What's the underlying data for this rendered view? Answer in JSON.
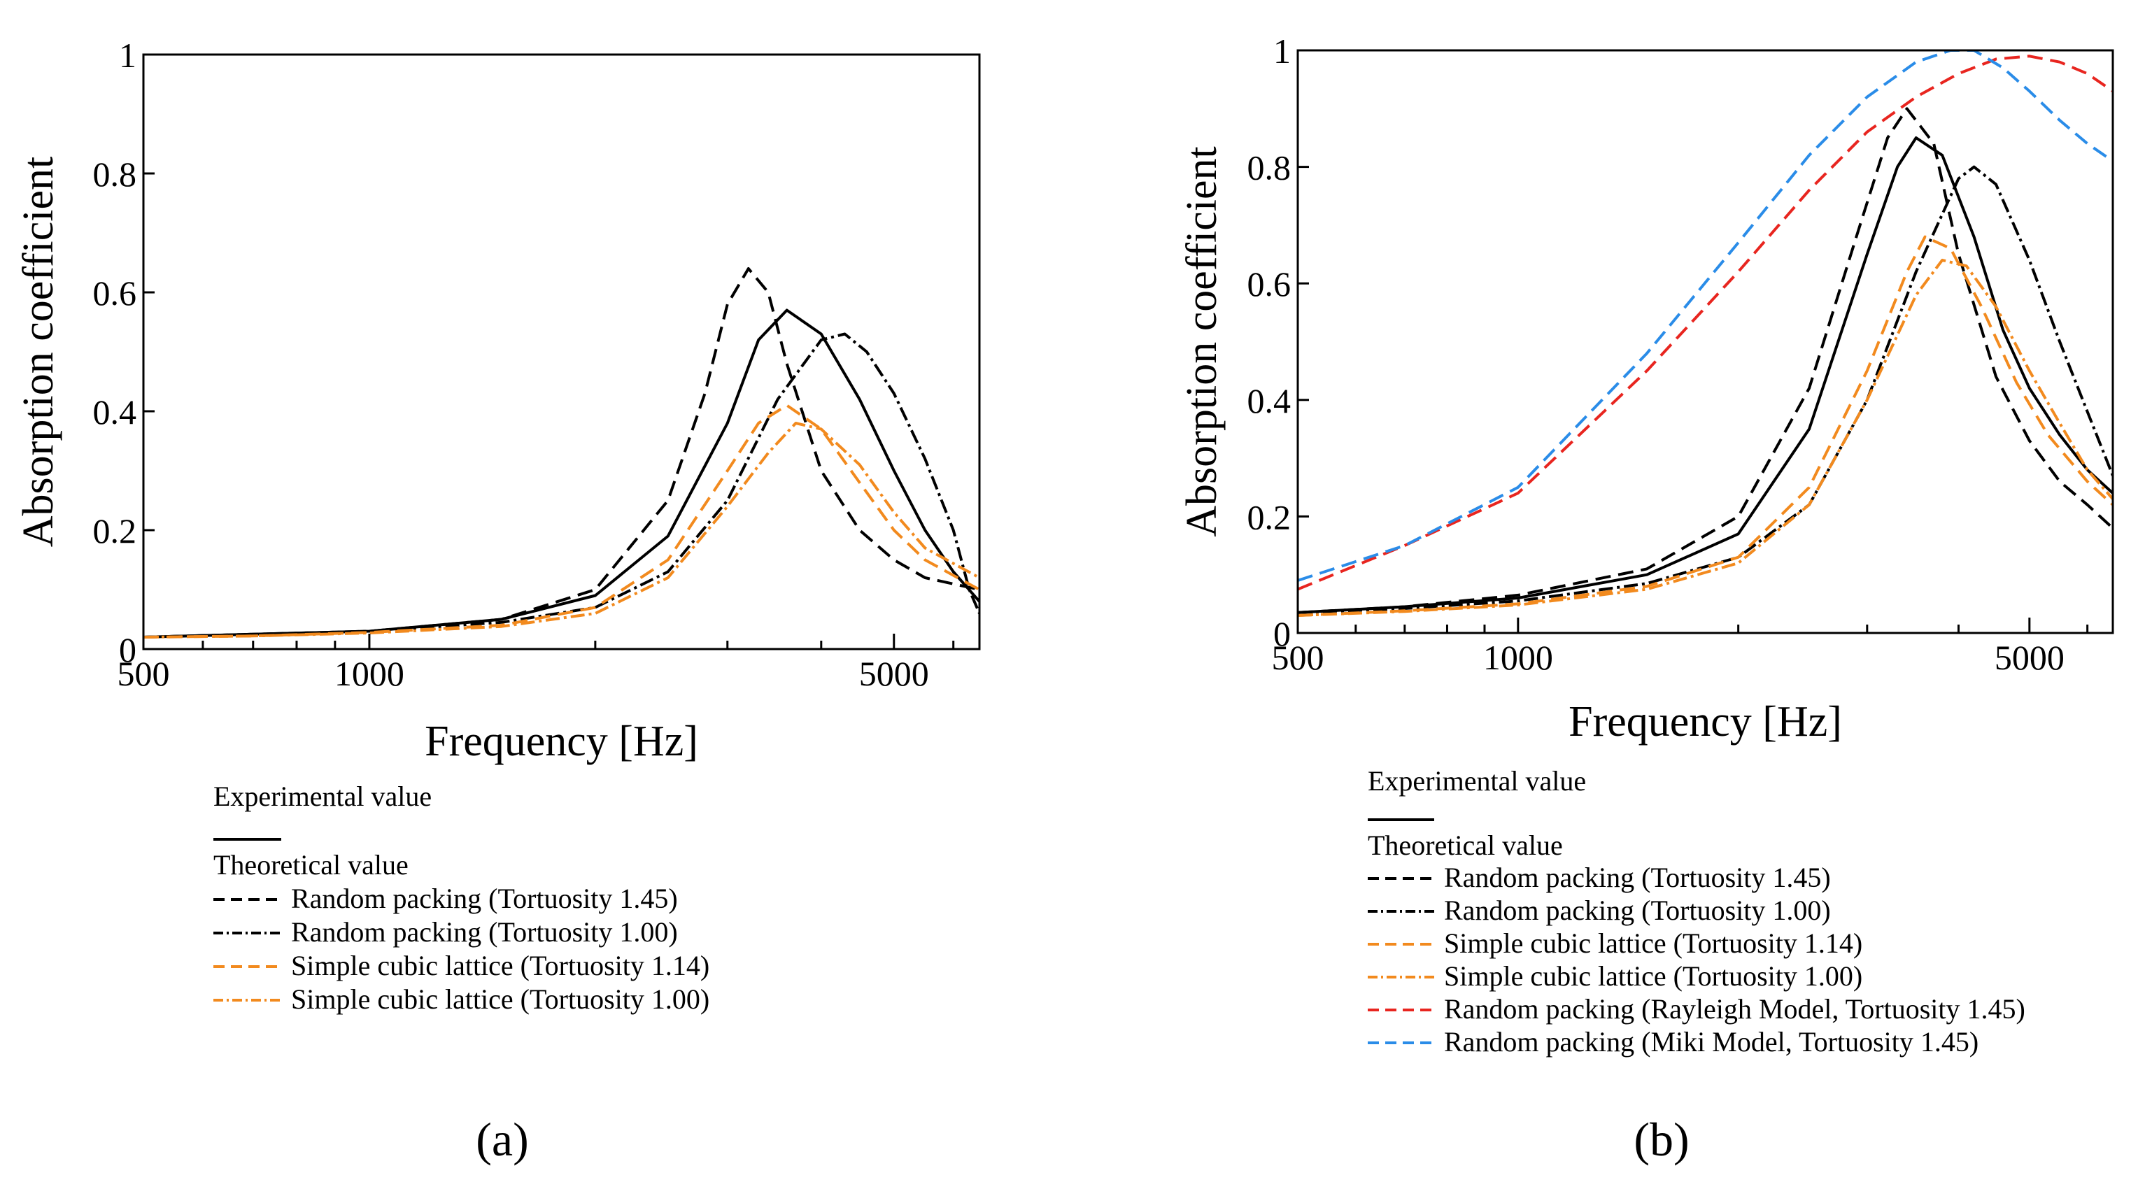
{
  "chart_data": [
    {
      "type": "line",
      "panel_label": "(a)",
      "xlabel": "Frequency [Hz]",
      "ylabel": "Absorption coefficient",
      "xscale": "log",
      "xlim": [
        500,
        6500
      ],
      "ylim": [
        0,
        1
      ],
      "x_ticks": [
        500,
        1000,
        5000
      ],
      "x_tick_labels": [
        "500",
        "1000",
        "5000"
      ],
      "y_ticks": [
        0,
        0.2,
        0.4,
        0.6,
        0.8,
        1
      ],
      "y_tick_labels": [
        "0",
        "0.2",
        "0.4",
        "0.6",
        "0.8",
        "1"
      ],
      "legend": {
        "placement": "below",
        "group_titles": [
          "Experimental value",
          "Theoretical value"
        ],
        "entries": [
          "Random packing (Tortuosity 1.45)",
          "Random packing (Tortuosity 1.00)",
          "Simple cubic lattice (Tortuosity 1.14)",
          "Simple cubic lattice (Tortuosity 1.00)"
        ]
      },
      "series": [
        {
          "name": "Experimental value",
          "color": "#000000",
          "dash": "solid",
          "x": [
            500,
            700,
            1000,
            1500,
            2000,
            2500,
            3000,
            3300,
            3600,
            4000,
            4500,
            5000,
            5500,
            6000,
            6500
          ],
          "y": [
            0.02,
            0.025,
            0.03,
            0.05,
            0.09,
            0.19,
            0.38,
            0.52,
            0.57,
            0.53,
            0.42,
            0.3,
            0.2,
            0.13,
            0.08
          ]
        },
        {
          "name": "Random packing (Tortuosity 1.45)",
          "color": "#000000",
          "dash": "dash",
          "x": [
            500,
            700,
            1000,
            1500,
            2000,
            2500,
            2800,
            3000,
            3200,
            3400,
            3600,
            4000,
            4500,
            5000,
            5500,
            6500
          ],
          "y": [
            0.02,
            0.025,
            0.03,
            0.05,
            0.1,
            0.25,
            0.43,
            0.58,
            0.64,
            0.6,
            0.48,
            0.3,
            0.2,
            0.15,
            0.12,
            0.1
          ]
        },
        {
          "name": "Random packing (Tortuosity 1.00)",
          "color": "#000000",
          "dash": "dashdot",
          "x": [
            500,
            700,
            1000,
            1500,
            2000,
            2500,
            3000,
            3500,
            4000,
            4300,
            4600,
            5000,
            5500,
            6000,
            6300,
            6500
          ],
          "y": [
            0.02,
            0.025,
            0.03,
            0.045,
            0.07,
            0.13,
            0.25,
            0.42,
            0.52,
            0.53,
            0.5,
            0.43,
            0.32,
            0.2,
            0.1,
            0.06
          ]
        },
        {
          "name": "Simple cubic lattice (Tortuosity 1.14)",
          "color": "#f28a1e",
          "dash": "dash",
          "x": [
            500,
            700,
            1000,
            1500,
            2000,
            2500,
            3000,
            3300,
            3600,
            4000,
            4500,
            5000,
            5500,
            6500
          ],
          "y": [
            0.02,
            0.022,
            0.028,
            0.04,
            0.07,
            0.15,
            0.3,
            0.38,
            0.41,
            0.37,
            0.28,
            0.2,
            0.15,
            0.1
          ]
        },
        {
          "name": "Simple cubic lattice (Tortuosity 1.00)",
          "color": "#f28a1e",
          "dash": "dashdot",
          "x": [
            500,
            700,
            1000,
            1500,
            2000,
            2500,
            3000,
            3400,
            3700,
            4000,
            4500,
            5000,
            5500,
            6500
          ],
          "y": [
            0.02,
            0.022,
            0.027,
            0.038,
            0.06,
            0.12,
            0.24,
            0.33,
            0.38,
            0.37,
            0.31,
            0.23,
            0.17,
            0.12
          ]
        }
      ]
    },
    {
      "type": "line",
      "panel_label": "(b)",
      "xlabel": "Frequency [Hz]",
      "ylabel": "Absorption coefficient",
      "xscale": "log",
      "xlim": [
        500,
        6500
      ],
      "ylim": [
        0,
        1
      ],
      "x_ticks": [
        500,
        1000,
        5000
      ],
      "x_tick_labels": [
        "500",
        "1000",
        "5000"
      ],
      "y_ticks": [
        0,
        0.2,
        0.4,
        0.6,
        0.8,
        1
      ],
      "y_tick_labels": [
        "0",
        "0.2",
        "0.4",
        "0.6",
        "0.8",
        "1"
      ],
      "legend": {
        "placement": "below",
        "group_titles": [
          "Experimental value",
          "Theoretical value"
        ],
        "entries": [
          "Random packing (Tortuosity 1.45)",
          "Random packing (Tortuosity 1.00)",
          "Simple cubic lattice (Tortuosity 1.14)",
          "Simple cubic lattice (Tortuosity 1.00)",
          "Random packing (Rayleigh Model, Tortuosity 1.45)",
          "Random packing (Miki Model, Tortuosity 1.45)"
        ]
      },
      "series": [
        {
          "name": "Experimental value",
          "color": "#000000",
          "dash": "solid",
          "x": [
            500,
            700,
            1000,
            1500,
            2000,
            2500,
            3000,
            3300,
            3500,
            3800,
            4200,
            4600,
            5000,
            5500,
            6000,
            6500
          ],
          "y": [
            0.035,
            0.045,
            0.06,
            0.1,
            0.17,
            0.35,
            0.65,
            0.8,
            0.85,
            0.82,
            0.68,
            0.52,
            0.42,
            0.34,
            0.28,
            0.24
          ]
        },
        {
          "name": "Random packing (Tortuosity 1.45)",
          "color": "#000000",
          "dash": "dash",
          "x": [
            500,
            700,
            1000,
            1500,
            2000,
            2500,
            2900,
            3200,
            3400,
            3700,
            4000,
            4500,
            5000,
            5500,
            6000,
            6500
          ],
          "y": [
            0.035,
            0.045,
            0.065,
            0.11,
            0.2,
            0.42,
            0.68,
            0.85,
            0.9,
            0.84,
            0.65,
            0.44,
            0.33,
            0.26,
            0.22,
            0.18
          ]
        },
        {
          "name": "Random packing (Tortuosity 1.00)",
          "color": "#000000",
          "dash": "dashdot",
          "x": [
            500,
            700,
            1000,
            1500,
            2000,
            2500,
            3000,
            3500,
            4000,
            4200,
            4500,
            5000,
            5500,
            6000,
            6500
          ],
          "y": [
            0.035,
            0.042,
            0.055,
            0.085,
            0.13,
            0.22,
            0.4,
            0.62,
            0.78,
            0.8,
            0.77,
            0.64,
            0.5,
            0.38,
            0.27
          ]
        },
        {
          "name": "Simple cubic lattice (Tortuosity 1.14)",
          "color": "#f28a1e",
          "dash": "dash",
          "x": [
            500,
            700,
            1000,
            1500,
            2000,
            2500,
            3000,
            3400,
            3600,
            3900,
            4300,
            4800,
            5300,
            6000,
            6500
          ],
          "y": [
            0.03,
            0.038,
            0.05,
            0.08,
            0.13,
            0.25,
            0.45,
            0.62,
            0.68,
            0.66,
            0.56,
            0.43,
            0.34,
            0.26,
            0.22
          ]
        },
        {
          "name": "Simple cubic lattice (Tortuosity 1.00)",
          "color": "#f28a1e",
          "dash": "dashdot",
          "x": [
            500,
            700,
            1000,
            1500,
            2000,
            2500,
            3000,
            3500,
            3800,
            4100,
            4500,
            5000,
            5500,
            6000,
            6500
          ],
          "y": [
            0.03,
            0.037,
            0.048,
            0.075,
            0.12,
            0.22,
            0.4,
            0.58,
            0.64,
            0.63,
            0.56,
            0.45,
            0.36,
            0.28,
            0.23
          ]
        },
        {
          "name": "Random packing (Rayleigh Model, Tortuosity 1.45)",
          "color": "#e8251f",
          "dash": "dash",
          "x": [
            500,
            700,
            1000,
            1500,
            2000,
            2500,
            3000,
            3500,
            4000,
            4500,
            5000,
            5500,
            6000,
            6500
          ],
          "y": [
            0.075,
            0.15,
            0.24,
            0.45,
            0.62,
            0.76,
            0.86,
            0.92,
            0.96,
            0.985,
            0.99,
            0.98,
            0.96,
            0.93
          ]
        },
        {
          "name": "Random packing (Miki Model, Tortuosity 1.45)",
          "color": "#2a8ce8",
          "dash": "dash",
          "x": [
            500,
            700,
            1000,
            1500,
            2000,
            2500,
            3000,
            3500,
            3900,
            4200,
            4600,
            5000,
            5500,
            6000,
            6500
          ],
          "y": [
            0.09,
            0.15,
            0.25,
            0.48,
            0.67,
            0.82,
            0.92,
            0.98,
            1.0,
            1.0,
            0.97,
            0.93,
            0.88,
            0.84,
            0.81
          ]
        }
      ]
    }
  ]
}
